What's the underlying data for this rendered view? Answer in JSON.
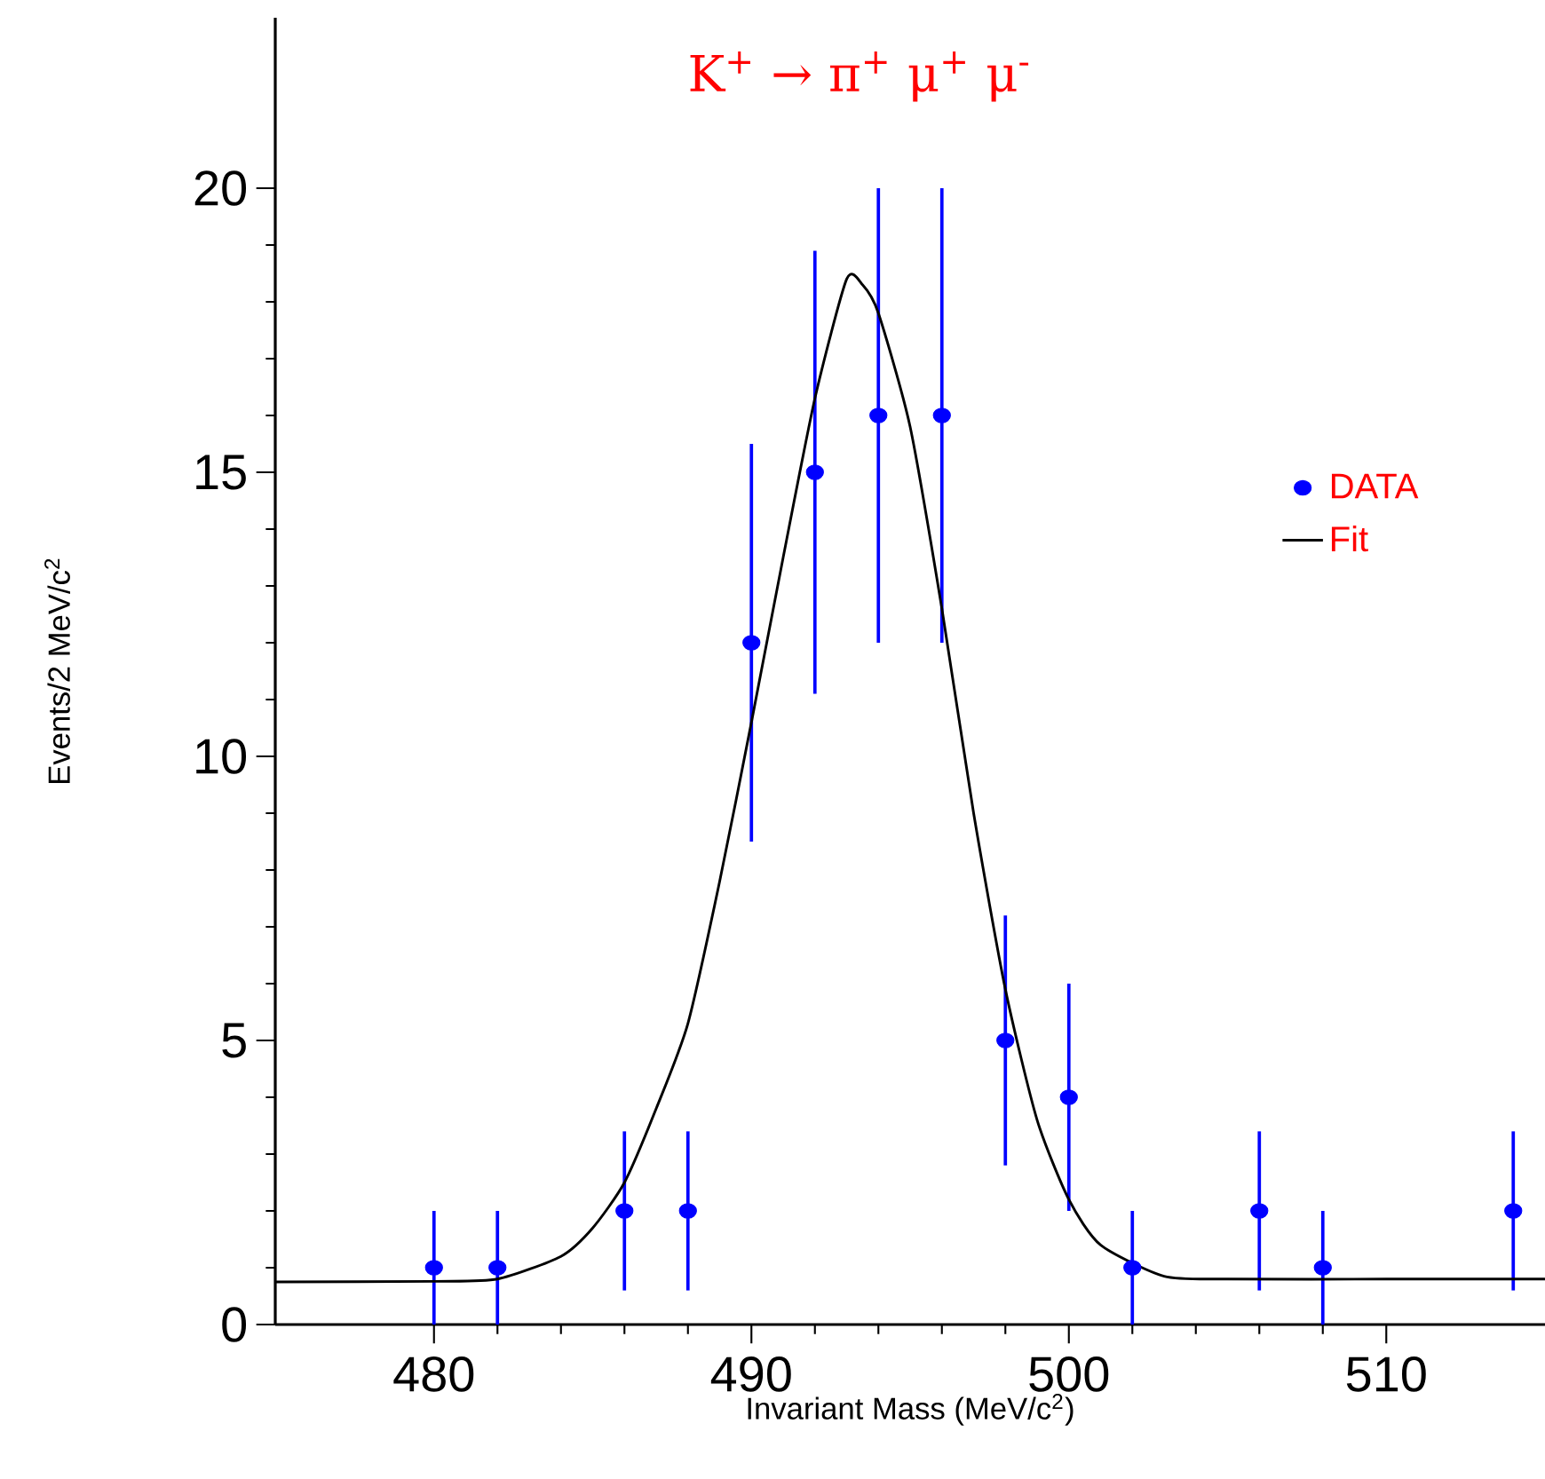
{
  "chart_data": {
    "type": "scatter",
    "title": "K$^{+}$ → π$^{+}$ μ$^{+}$ μ$^{-}$",
    "xlabel": "Invariant Mass (MeV/c$^{2}$)",
    "ylabel": "Events/2 MeV/c$^{2}$",
    "xlim": [
      475,
      515
    ],
    "ylim": [
      0,
      23
    ],
    "xticks": [
      480,
      490,
      500,
      510
    ],
    "yticks": [
      0,
      5,
      10,
      15,
      20
    ],
    "legend": "right",
    "grid": false,
    "series": [
      {
        "name": "DATA",
        "type": "scatter",
        "color": "#0000ff",
        "marker": "circle",
        "x": [
          480,
          482,
          486,
          488,
          490,
          492,
          494,
          496,
          498,
          500,
          502,
          506,
          508,
          514
        ],
        "values": [
          1,
          1,
          2,
          2,
          12,
          15,
          16,
          16,
          5,
          4,
          1,
          2,
          1,
          2
        ],
        "errors": [
          1,
          1,
          1.4,
          1.4,
          3.5,
          3.9,
          4,
          4,
          2.2,
          2,
          1,
          1.4,
          1,
          1.4
        ]
      },
      {
        "name": "Fit",
        "type": "line",
        "color": "#000000",
        "marker": "none",
        "x": [
          475,
          480,
          482,
          484,
          485,
          486,
          487,
          488,
          489,
          490,
          491,
          492,
          493,
          493.5,
          494,
          495,
          496,
          497,
          498,
          499,
          500,
          501,
          503,
          505,
          510,
          515
        ],
        "values": [
          0.75,
          0.76,
          0.8,
          1.2,
          1.7,
          2.5,
          3.8,
          5.3,
          7.8,
          10.6,
          13.5,
          16.3,
          18.4,
          18.3,
          17.8,
          15.8,
          12.6,
          9.0,
          5.9,
          3.6,
          2.2,
          1.4,
          0.85,
          0.8,
          0.8,
          0.8
        ]
      }
    ]
  }
}
